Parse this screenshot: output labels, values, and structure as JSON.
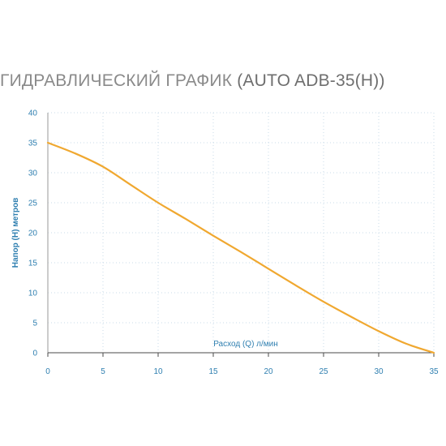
{
  "title": {
    "prefix": "ГИДРАВЛИЧЕСКИЙ ГРАФИК ",
    "model": "(AUTO ADB-35(H))"
  },
  "chart_data": {
    "type": "line",
    "title": "ГИДРАВЛИЧЕСКИЙ ГРАФИК (AUTO ADB-35(H))",
    "xlabel": "Расход (Q) л/мин",
    "ylabel": "Напор (H) метров",
    "xlim": [
      0,
      35
    ],
    "ylim": [
      0,
      40
    ],
    "xticks": [
      0,
      5,
      10,
      15,
      20,
      25,
      30,
      35
    ],
    "yticks": [
      0,
      5,
      10,
      15,
      20,
      25,
      30,
      35,
      40
    ],
    "grid": "dotted",
    "series": [
      {
        "color": "#f0a830",
        "x": [
          0,
          2.5,
          5,
          7.5,
          10,
          12.5,
          15,
          17.5,
          20,
          22.5,
          25,
          27.5,
          30,
          32.5,
          35
        ],
        "y": [
          35,
          33.2,
          31,
          28,
          25,
          22.3,
          19.5,
          16.8,
          14,
          11.2,
          8.5,
          6,
          3.6,
          1.5,
          0
        ]
      }
    ]
  }
}
